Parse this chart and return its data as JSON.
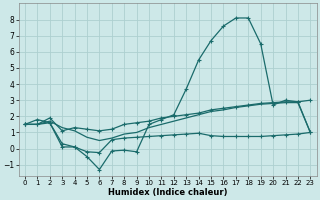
{
  "background_color": "#cde8e8",
  "grid_color": "#add0d0",
  "line_color": "#1a6b6b",
  "xlabel": "Humidex (Indice chaleur)",
  "xlim": [
    -0.5,
    23.5
  ],
  "ylim": [
    -1.7,
    9.0
  ],
  "yticks": [
    -1,
    0,
    1,
    2,
    3,
    4,
    5,
    6,
    7,
    8
  ],
  "xticks": [
    0,
    1,
    2,
    3,
    4,
    5,
    6,
    7,
    8,
    9,
    10,
    11,
    12,
    13,
    14,
    15,
    16,
    17,
    18,
    19,
    20,
    21,
    22,
    23
  ],
  "line1_x": [
    0,
    1,
    2,
    3,
    4,
    5,
    6,
    7,
    8,
    9,
    10,
    11,
    12,
    13,
    14,
    15,
    16,
    17,
    18,
    19,
    20,
    21,
    22,
    23
  ],
  "line1_y": [
    1.5,
    1.8,
    1.6,
    0.3,
    0.1,
    -0.5,
    -1.3,
    -0.15,
    -0.1,
    -0.2,
    1.5,
    1.8,
    2.1,
    3.7,
    5.5,
    6.7,
    7.6,
    8.1,
    8.1,
    6.5,
    2.7,
    3.0,
    2.9,
    3.0
  ],
  "line2_x": [
    0,
    1,
    2,
    3,
    4,
    5,
    6,
    7,
    8,
    9,
    10,
    11,
    12,
    13,
    14,
    15,
    16,
    17,
    18,
    19,
    20,
    21,
    22,
    23
  ],
  "line2_y": [
    1.5,
    1.5,
    1.9,
    1.1,
    1.3,
    1.2,
    1.1,
    1.2,
    1.5,
    1.6,
    1.7,
    1.9,
    2.0,
    2.1,
    2.2,
    2.4,
    2.5,
    2.6,
    2.7,
    2.8,
    2.85,
    2.9,
    2.9,
    1.0
  ],
  "line3_x": [
    0,
    1,
    2,
    3,
    4,
    5,
    6,
    7,
    8,
    9,
    10,
    11,
    12,
    13,
    14,
    15,
    16,
    17,
    18,
    19,
    20,
    21,
    22,
    23
  ],
  "line3_y": [
    1.5,
    1.5,
    1.7,
    1.3,
    1.1,
    0.7,
    0.5,
    0.65,
    0.9,
    1.0,
    1.3,
    1.5,
    1.7,
    1.9,
    2.1,
    2.3,
    2.4,
    2.55,
    2.65,
    2.75,
    2.8,
    2.85,
    2.85,
    1.0
  ],
  "line4_x": [
    0,
    1,
    2,
    3,
    4,
    5,
    6,
    7,
    8,
    9,
    10,
    11,
    12,
    13,
    14,
    15,
    16,
    17,
    18,
    19,
    20,
    21,
    22,
    23
  ],
  "line4_y": [
    1.5,
    1.5,
    1.6,
    0.1,
    0.1,
    -0.2,
    -0.25,
    0.55,
    0.65,
    0.7,
    0.75,
    0.8,
    0.85,
    0.9,
    0.95,
    0.8,
    0.75,
    0.75,
    0.75,
    0.75,
    0.8,
    0.85,
    0.9,
    1.0
  ]
}
